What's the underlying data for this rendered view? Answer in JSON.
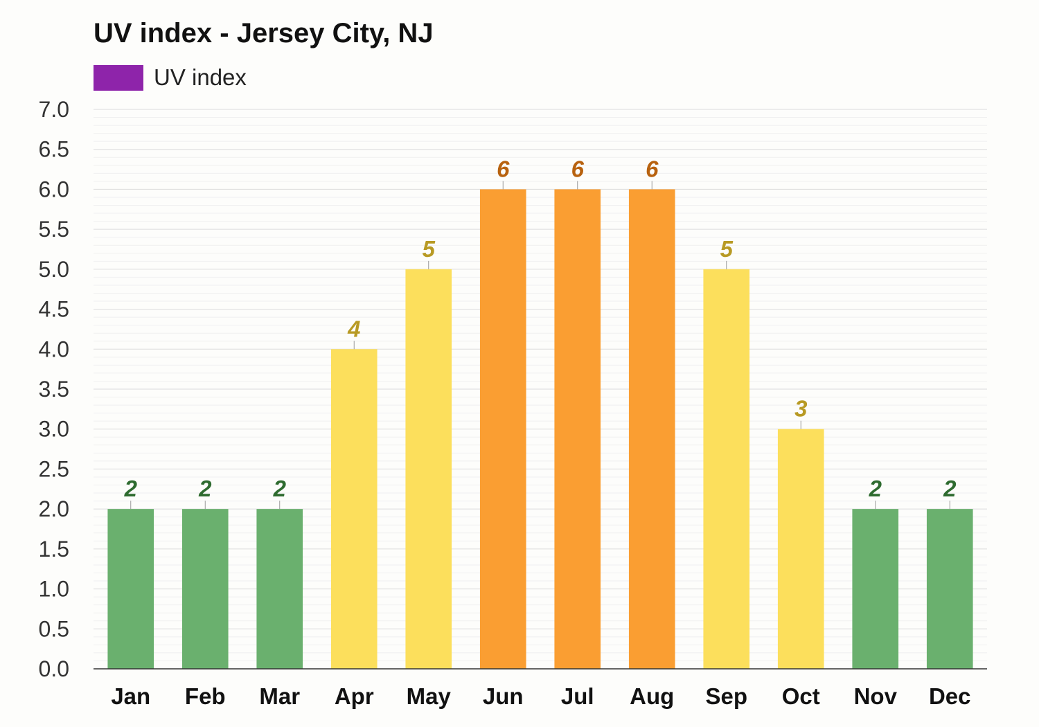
{
  "colors": {
    "legend": "#8e24aa",
    "low": "#6ab06e",
    "low_label": "#2e6b2f",
    "moderate": "#fcdf5c",
    "moderate_label": "#b89a24",
    "high": "#fa9e32",
    "high_label": "#b8620f",
    "grid": "#e4e4e4",
    "axis": "#333333"
  },
  "chart_data": {
    "type": "bar",
    "title": "UV index - Jersey City, NJ",
    "legend": [
      "UV index"
    ],
    "legend_position": "top-left",
    "grid": true,
    "categories": [
      "Jan",
      "Feb",
      "Mar",
      "Apr",
      "May",
      "Jun",
      "Jul",
      "Aug",
      "Sep",
      "Oct",
      "Nov",
      "Dec"
    ],
    "series": [
      {
        "name": "UV index",
        "values": [
          2,
          2,
          2,
          4,
          5,
          6,
          6,
          6,
          5,
          3,
          2,
          2
        ],
        "colors": [
          "low",
          "low",
          "low",
          "moderate",
          "moderate",
          "high",
          "high",
          "high",
          "moderate",
          "moderate",
          "low",
          "low"
        ]
      }
    ],
    "data_labels": [
      "2",
      "2",
      "2",
      "4",
      "5",
      "6",
      "6",
      "6",
      "5",
      "3",
      "2",
      "2"
    ],
    "ylim": [
      0,
      7
    ],
    "yticks": [
      "0.0",
      "0.5",
      "1.0",
      "1.5",
      "2.0",
      "2.5",
      "3.0",
      "3.5",
      "4.0",
      "4.5",
      "5.0",
      "5.5",
      "6.0",
      "6.5",
      "7.0"
    ],
    "xlabel": "",
    "ylabel": ""
  }
}
